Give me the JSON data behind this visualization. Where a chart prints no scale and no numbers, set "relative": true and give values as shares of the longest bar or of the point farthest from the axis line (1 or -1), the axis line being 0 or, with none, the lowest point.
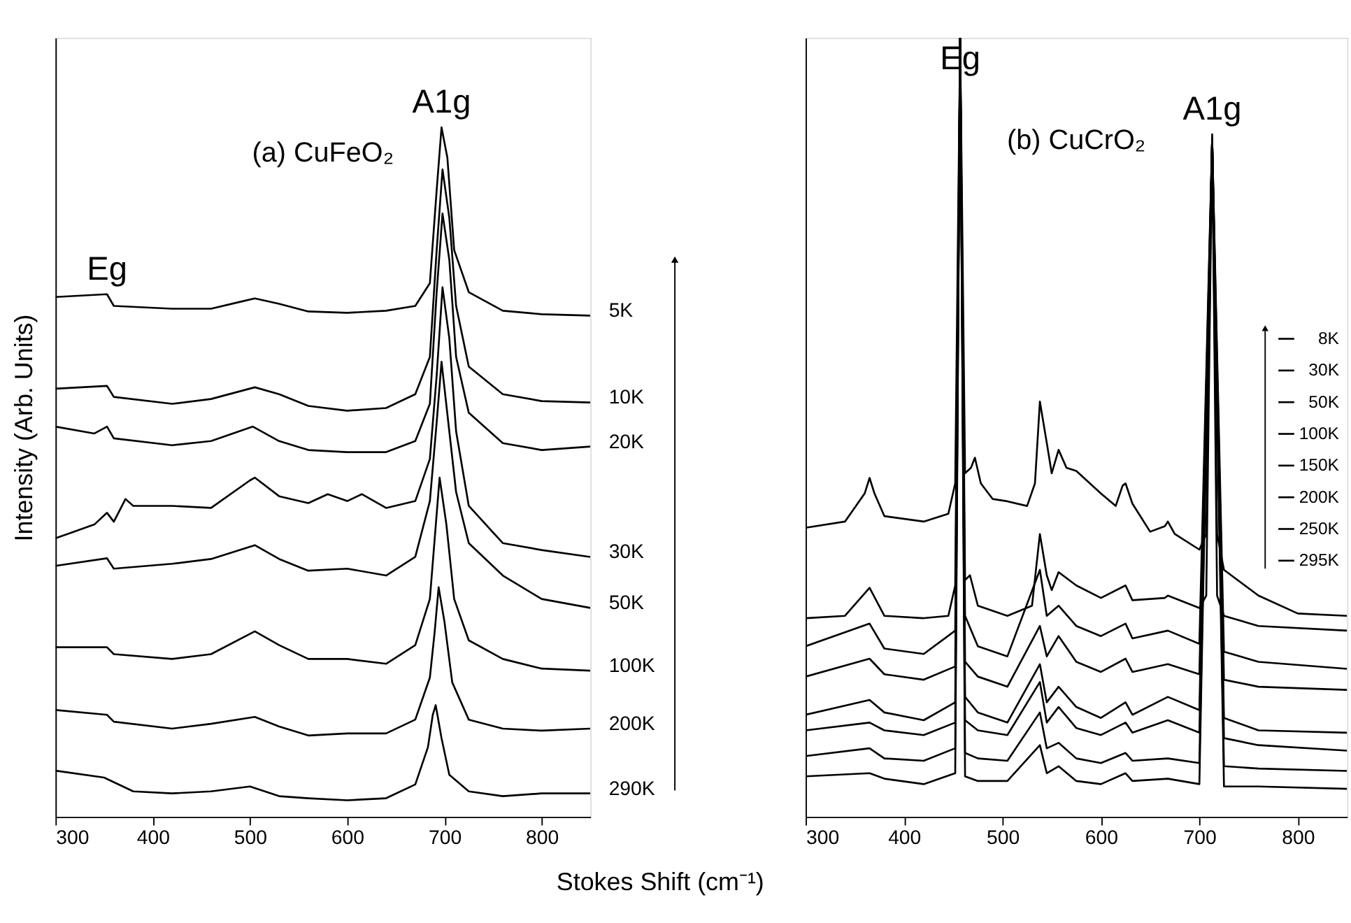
{
  "chart_data": [
    {
      "type": "line",
      "relative": true,
      "ylabel": "Intensity (Arb. Units)",
      "xlabel": "Stokes Shift (cm⁻¹)",
      "xlim": [
        300,
        850
      ],
      "xticks": [
        300,
        400,
        500,
        600,
        700,
        800
      ],
      "tick_labels": "x",
      "grid": false,
      "legend": false,
      "annotations": [
        "(a) CuFeO₂",
        {
          "text": "Eg",
          "x": 353,
          "y": 0.758
        },
        {
          "text": "A1g",
          "x": 697,
          "y": 1.0
        }
      ],
      "series": [
        {
          "name": "5K",
          "color": "#000000",
          "x": [
            300,
            353,
            360,
            420,
            460,
            490,
            505,
            530,
            560,
            600,
            640,
            670,
            685,
            692,
            697,
            703,
            710,
            725,
            760,
            800,
            850
          ],
          "values": [
            0.754,
            0.758,
            0.741,
            0.737,
            0.737,
            0.747,
            0.752,
            0.744,
            0.733,
            0.731,
            0.734,
            0.741,
            0.774,
            0.909,
            1.0,
            0.956,
            0.822,
            0.761,
            0.734,
            0.729,
            0.727
          ]
        },
        {
          "name": "10K",
          "color": "#000000",
          "x": [
            300,
            353,
            360,
            420,
            460,
            505,
            530,
            560,
            600,
            640,
            670,
            685,
            692,
            698,
            705,
            712,
            725,
            760,
            800,
            850
          ],
          "values": [
            0.621,
            0.625,
            0.609,
            0.599,
            0.606,
            0.623,
            0.613,
            0.596,
            0.589,
            0.593,
            0.613,
            0.667,
            0.822,
            0.939,
            0.869,
            0.741,
            0.653,
            0.613,
            0.603,
            0.601
          ]
        },
        {
          "name": "20K",
          "color": "#000000",
          "x": [
            300,
            340,
            353,
            360,
            420,
            460,
            503,
            530,
            560,
            600,
            640,
            670,
            685,
            692,
            698,
            705,
            712,
            725,
            760,
            800,
            850
          ],
          "values": [
            0.566,
            0.556,
            0.566,
            0.549,
            0.539,
            0.545,
            0.566,
            0.545,
            0.532,
            0.529,
            0.529,
            0.545,
            0.599,
            0.761,
            0.875,
            0.808,
            0.667,
            0.586,
            0.542,
            0.532,
            0.537
          ]
        },
        {
          "name": "30K",
          "color": "#000000",
          "x": [
            300,
            340,
            353,
            360,
            372,
            380,
            420,
            460,
            500,
            505,
            530,
            560,
            580,
            600,
            615,
            640,
            670,
            685,
            692,
            698,
            705,
            712,
            725,
            760,
            800,
            850
          ],
          "values": [
            0.404,
            0.424,
            0.441,
            0.428,
            0.461,
            0.451,
            0.451,
            0.448,
            0.488,
            0.492,
            0.465,
            0.455,
            0.468,
            0.458,
            0.468,
            0.448,
            0.458,
            0.519,
            0.64,
            0.768,
            0.694,
            0.559,
            0.451,
            0.397,
            0.387,
            0.377
          ]
        },
        {
          "name": "50K",
          "color": "#000000",
          "x": [
            300,
            353,
            360,
            420,
            460,
            505,
            530,
            560,
            600,
            640,
            670,
            685,
            692,
            697,
            705,
            712,
            725,
            760,
            800,
            850
          ],
          "values": [
            0.364,
            0.375,
            0.36,
            0.367,
            0.374,
            0.394,
            0.374,
            0.357,
            0.36,
            0.35,
            0.377,
            0.458,
            0.572,
            0.66,
            0.559,
            0.471,
            0.397,
            0.35,
            0.316,
            0.303
          ]
        },
        {
          "name": "100K",
          "color": "#000000",
          "x": [
            300,
            353,
            360,
            420,
            460,
            505,
            530,
            560,
            600,
            640,
            670,
            685,
            690,
            695,
            702,
            710,
            725,
            760,
            800,
            850
          ],
          "values": [
            0.246,
            0.246,
            0.236,
            0.229,
            0.236,
            0.269,
            0.249,
            0.229,
            0.229,
            0.222,
            0.249,
            0.316,
            0.404,
            0.492,
            0.424,
            0.316,
            0.256,
            0.229,
            0.215,
            0.212
          ]
        },
        {
          "name": "200K",
          "color": "#000000",
          "x": [
            300,
            353,
            360,
            420,
            460,
            505,
            530,
            560,
            600,
            640,
            670,
            685,
            690,
            694,
            700,
            708,
            725,
            760,
            800,
            850
          ],
          "values": [
            0.155,
            0.148,
            0.138,
            0.128,
            0.135,
            0.145,
            0.131,
            0.118,
            0.121,
            0.121,
            0.141,
            0.202,
            0.269,
            0.333,
            0.283,
            0.195,
            0.141,
            0.128,
            0.125,
            0.128
          ]
        },
        {
          "name": "290K",
          "color": "#000000",
          "x": [
            300,
            350,
            380,
            420,
            460,
            500,
            530,
            560,
            600,
            640,
            670,
            683,
            688,
            691,
            697,
            705,
            725,
            760,
            800,
            850
          ],
          "values": [
            0.067,
            0.057,
            0.037,
            0.034,
            0.037,
            0.044,
            0.03,
            0.027,
            0.024,
            0.027,
            0.047,
            0.101,
            0.148,
            0.162,
            0.114,
            0.061,
            0.037,
            0.03,
            0.034,
            0.034
          ]
        }
      ]
    },
    {
      "type": "line",
      "relative": true,
      "xlim": [
        300,
        850
      ],
      "xticks": [
        300,
        400,
        500,
        600,
        700,
        800
      ],
      "tick_labels": "x",
      "grid": false,
      "legend": "right",
      "annotations": [
        "(b) CuCrO₂",
        {
          "text": "Eg",
          "x": 457,
          "y": 1.0
        },
        {
          "text": "A1g",
          "x": 713,
          "y": 0.876
        }
      ],
      "series": [
        {
          "name": "8K",
          "color": "#000000",
          "x": [
            300,
            340,
            360,
            365,
            370,
            380,
            420,
            445,
            452,
            457,
            462,
            468,
            472,
            478,
            490,
            505,
            525,
            533,
            538,
            545,
            550,
            557,
            565,
            575,
            600,
            615,
            622,
            625,
            632,
            650,
            665,
            668,
            675,
            700,
            707,
            713,
            718,
            725,
            760,
            800,
            850
          ],
          "values": [
            0.371,
            0.379,
            0.415,
            0.435,
            0.415,
            0.386,
            0.379,
            0.389,
            0.428,
            1.0,
            0.441,
            0.448,
            0.461,
            0.428,
            0.408,
            0.405,
            0.399,
            0.428,
            0.533,
            0.48,
            0.441,
            0.471,
            0.448,
            0.444,
            0.415,
            0.399,
            0.425,
            0.428,
            0.402,
            0.366,
            0.373,
            0.379,
            0.363,
            0.343,
            0.363,
            0.876,
            0.363,
            0.317,
            0.284,
            0.261,
            0.258
          ]
        },
        {
          "name": "30K",
          "color": "#000000",
          "x": [
            300,
            340,
            365,
            380,
            420,
            445,
            452,
            457,
            462,
            467,
            475,
            505,
            530,
            538,
            545,
            550,
            557,
            575,
            600,
            625,
            632,
            665,
            668,
            700,
            707,
            713,
            718,
            725,
            760,
            850
          ],
          "values": [
            0.255,
            0.258,
            0.294,
            0.258,
            0.255,
            0.258,
            0.297,
            1.0,
            0.304,
            0.31,
            0.271,
            0.258,
            0.271,
            0.363,
            0.31,
            0.291,
            0.314,
            0.297,
            0.281,
            0.297,
            0.278,
            0.281,
            0.284,
            0.268,
            0.284,
            0.87,
            0.284,
            0.258,
            0.245,
            0.239
          ]
        },
        {
          "name": "50K",
          "color": "#000000",
          "x": [
            300,
            365,
            380,
            420,
            452,
            457,
            462,
            475,
            505,
            538,
            545,
            557,
            575,
            600,
            625,
            632,
            668,
            700,
            713,
            725,
            760,
            850
          ],
          "values": [
            0.219,
            0.248,
            0.216,
            0.209,
            0.239,
            1.0,
            0.258,
            0.219,
            0.206,
            0.317,
            0.258,
            0.271,
            0.245,
            0.232,
            0.248,
            0.229,
            0.239,
            0.222,
            0.87,
            0.212,
            0.199,
            0.19
          ]
        },
        {
          "name": "100K",
          "color": "#000000",
          "x": [
            300,
            365,
            380,
            420,
            452,
            457,
            462,
            475,
            505,
            538,
            545,
            557,
            575,
            600,
            625,
            632,
            668,
            700,
            713,
            725,
            760,
            850
          ],
          "values": [
            0.18,
            0.203,
            0.183,
            0.176,
            0.193,
            1.0,
            0.199,
            0.18,
            0.167,
            0.245,
            0.206,
            0.232,
            0.199,
            0.186,
            0.203,
            0.186,
            0.196,
            0.183,
            0.87,
            0.176,
            0.167,
            0.163
          ]
        },
        {
          "name": "150K",
          "color": "#000000",
          "x": [
            300,
            365,
            380,
            420,
            452,
            457,
            462,
            475,
            505,
            538,
            545,
            557,
            575,
            600,
            625,
            632,
            668,
            700,
            713,
            725,
            760,
            850
          ],
          "values": [
            0.131,
            0.15,
            0.134,
            0.124,
            0.147,
            1.0,
            0.154,
            0.134,
            0.121,
            0.196,
            0.147,
            0.167,
            0.141,
            0.127,
            0.147,
            0.131,
            0.154,
            0.137,
            0.87,
            0.127,
            0.111,
            0.108
          ]
        },
        {
          "name": "200K",
          "color": "#000000",
          "x": [
            300,
            365,
            380,
            420,
            452,
            457,
            462,
            475,
            505,
            538,
            545,
            557,
            575,
            600,
            625,
            632,
            668,
            700,
            713,
            725,
            760,
            850
          ],
          "values": [
            0.111,
            0.121,
            0.111,
            0.105,
            0.121,
            1.0,
            0.124,
            0.111,
            0.105,
            0.173,
            0.121,
            0.141,
            0.114,
            0.105,
            0.121,
            0.108,
            0.124,
            0.108,
            0.87,
            0.101,
            0.092,
            0.085
          ]
        },
        {
          "name": "250K",
          "color": "#000000",
          "x": [
            300,
            365,
            380,
            420,
            452,
            457,
            462,
            475,
            505,
            538,
            545,
            557,
            575,
            600,
            625,
            632,
            668,
            700,
            713,
            725,
            760,
            850
          ],
          "values": [
            0.078,
            0.088,
            0.075,
            0.072,
            0.088,
            1.0,
            0.082,
            0.075,
            0.072,
            0.134,
            0.088,
            0.095,
            0.075,
            0.069,
            0.082,
            0.072,
            0.075,
            0.069,
            0.87,
            0.065,
            0.062,
            0.059
          ]
        },
        {
          "name": "295K",
          "color": "#000000",
          "x": [
            300,
            365,
            380,
            420,
            452,
            457,
            462,
            475,
            505,
            538,
            545,
            557,
            575,
            600,
            625,
            632,
            668,
            700,
            713,
            725,
            760,
            850
          ],
          "values": [
            0.052,
            0.056,
            0.049,
            0.042,
            0.056,
            1.0,
            0.052,
            0.046,
            0.046,
            0.092,
            0.056,
            0.065,
            0.046,
            0.042,
            0.056,
            0.046,
            0.049,
            0.042,
            0.87,
            0.039,
            0.039,
            0.036
          ]
        }
      ]
    }
  ]
}
